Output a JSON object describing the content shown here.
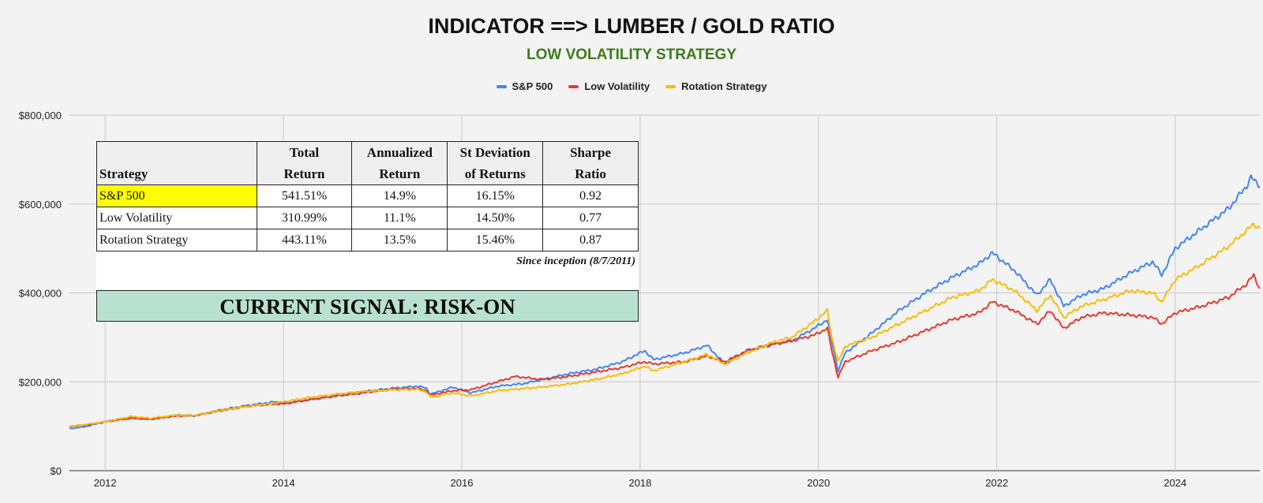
{
  "header": {
    "title": "INDICATOR ==> LUMBER / GOLD RATIO",
    "subtitle": "LOW VOLATILITY STRATEGY"
  },
  "legend": [
    {
      "label": "S&P 500",
      "color": "#4285f4"
    },
    {
      "label": "Low Volatility",
      "color": "#e8382e"
    },
    {
      "label": "Rotation Strategy",
      "color": "#fbbc04"
    }
  ],
  "stats_table": {
    "headers": [
      "Strategy",
      "Total Return",
      "Annualized Return",
      "St Deviation of Returns",
      "Sharpe Ratio"
    ],
    "header_lines": [
      [
        "Strategy"
      ],
      [
        "Total",
        "Return"
      ],
      [
        "Annualized",
        "Return"
      ],
      [
        "St Deviation",
        "of Returns"
      ],
      [
        "Sharpe",
        "Ratio"
      ]
    ],
    "rows": [
      [
        "S&P 500",
        "541.51%",
        "14.9%",
        "16.15%",
        "0.92"
      ],
      [
        "Low Volatility",
        "310.99%",
        "11.1%",
        "14.50%",
        "0.77"
      ],
      [
        "Rotation Strategy",
        "443.11%",
        "13.5%",
        "15.46%",
        "0.87"
      ]
    ],
    "footnote": "Since inception (8/7/2011)"
  },
  "signal": {
    "text": "CURRENT SIGNAL: RISK-ON",
    "color": "#b9e1cf"
  },
  "chart_data": {
    "type": "line",
    "title": "INDICATOR ==> LUMBER / GOLD RATIO",
    "subtitle": "LOW VOLATILITY STRATEGY",
    "xlabel": "",
    "ylabel": "",
    "xlim": [
      2011.6,
      2024.95
    ],
    "ylim": [
      0,
      800000
    ],
    "x_ticks": [
      2012,
      2014,
      2016,
      2018,
      2020,
      2022,
      2024
    ],
    "y_ticks": [
      0,
      200000,
      400000,
      600000,
      800000
    ],
    "y_tick_labels": [
      "$0",
      "$200,000",
      "$400,000",
      "$600,000",
      "$800,000"
    ],
    "grid": true,
    "legend_position": "top",
    "series": [
      {
        "name": "S&P 500",
        "color": "#4285f4",
        "points": [
          [
            2011.6,
            95000
          ],
          [
            2011.75,
            98000
          ],
          [
            2012.0,
            110000
          ],
          [
            2012.3,
            120000
          ],
          [
            2012.5,
            115000
          ],
          [
            2012.8,
            125000
          ],
          [
            2013.0,
            123000
          ],
          [
            2013.3,
            137000
          ],
          [
            2013.6,
            147000
          ],
          [
            2013.9,
            155000
          ],
          [
            2014.0,
            152000
          ],
          [
            2014.3,
            160000
          ],
          [
            2014.6,
            170000
          ],
          [
            2014.9,
            178000
          ],
          [
            2015.2,
            185000
          ],
          [
            2015.5,
            190000
          ],
          [
            2015.6,
            186000
          ],
          [
            2015.65,
            172000
          ],
          [
            2015.9,
            188000
          ],
          [
            2016.1,
            175000
          ],
          [
            2016.4,
            190000
          ],
          [
            2016.7,
            196000
          ],
          [
            2016.9,
            205000
          ],
          [
            2017.2,
            218000
          ],
          [
            2017.5,
            228000
          ],
          [
            2017.8,
            245000
          ],
          [
            2018.05,
            270000
          ],
          [
            2018.15,
            250000
          ],
          [
            2018.5,
            265000
          ],
          [
            2018.75,
            282000
          ],
          [
            2018.95,
            240000
          ],
          [
            2019.2,
            270000
          ],
          [
            2019.5,
            285000
          ],
          [
            2019.7,
            292000
          ],
          [
            2019.95,
            320000
          ],
          [
            2020.1,
            340000
          ],
          [
            2020.15,
            290000
          ],
          [
            2020.22,
            225000
          ],
          [
            2020.3,
            265000
          ],
          [
            2020.6,
            310000
          ],
          [
            2020.9,
            360000
          ],
          [
            2021.2,
            400000
          ],
          [
            2021.5,
            435000
          ],
          [
            2021.8,
            465000
          ],
          [
            2021.95,
            490000
          ],
          [
            2022.2,
            450000
          ],
          [
            2022.45,
            395000
          ],
          [
            2022.6,
            430000
          ],
          [
            2022.75,
            370000
          ],
          [
            2022.95,
            395000
          ],
          [
            2023.2,
            410000
          ],
          [
            2023.5,
            445000
          ],
          [
            2023.75,
            470000
          ],
          [
            2023.85,
            440000
          ],
          [
            2024.0,
            500000
          ],
          [
            2024.3,
            545000
          ],
          [
            2024.6,
            590000
          ],
          [
            2024.8,
            640000
          ],
          [
            2024.85,
            660000
          ],
          [
            2024.95,
            640000
          ]
        ]
      },
      {
        "name": "Low Volatility",
        "color": "#e8382e",
        "points": [
          [
            2011.6,
            100000
          ],
          [
            2011.75,
            102000
          ],
          [
            2012.0,
            110000
          ],
          [
            2012.3,
            118000
          ],
          [
            2012.5,
            116000
          ],
          [
            2012.8,
            123000
          ],
          [
            2013.0,
            124000
          ],
          [
            2013.3,
            135000
          ],
          [
            2013.6,
            145000
          ],
          [
            2013.9,
            150000
          ],
          [
            2014.0,
            150000
          ],
          [
            2014.3,
            160000
          ],
          [
            2014.6,
            168000
          ],
          [
            2014.9,
            175000
          ],
          [
            2015.2,
            183000
          ],
          [
            2015.5,
            185000
          ],
          [
            2015.6,
            180000
          ],
          [
            2015.65,
            170000
          ],
          [
            2015.9,
            180000
          ],
          [
            2016.1,
            182000
          ],
          [
            2016.4,
            200000
          ],
          [
            2016.6,
            212000
          ],
          [
            2016.9,
            205000
          ],
          [
            2017.2,
            212000
          ],
          [
            2017.5,
            222000
          ],
          [
            2017.8,
            232000
          ],
          [
            2018.05,
            245000
          ],
          [
            2018.15,
            240000
          ],
          [
            2018.5,
            245000
          ],
          [
            2018.75,
            258000
          ],
          [
            2018.95,
            245000
          ],
          [
            2019.2,
            270000
          ],
          [
            2019.5,
            285000
          ],
          [
            2019.7,
            292000
          ],
          [
            2019.95,
            305000
          ],
          [
            2020.1,
            320000
          ],
          [
            2020.15,
            270000
          ],
          [
            2020.22,
            210000
          ],
          [
            2020.3,
            245000
          ],
          [
            2020.6,
            270000
          ],
          [
            2020.9,
            290000
          ],
          [
            2021.2,
            315000
          ],
          [
            2021.5,
            340000
          ],
          [
            2021.8,
            355000
          ],
          [
            2021.95,
            380000
          ],
          [
            2022.2,
            360000
          ],
          [
            2022.45,
            330000
          ],
          [
            2022.6,
            360000
          ],
          [
            2022.75,
            320000
          ],
          [
            2022.95,
            345000
          ],
          [
            2023.2,
            355000
          ],
          [
            2023.5,
            350000
          ],
          [
            2023.75,
            345000
          ],
          [
            2023.85,
            330000
          ],
          [
            2024.0,
            355000
          ],
          [
            2024.3,
            370000
          ],
          [
            2024.6,
            390000
          ],
          [
            2024.8,
            420000
          ],
          [
            2024.88,
            440000
          ],
          [
            2024.95,
            410000
          ]
        ]
      },
      {
        "name": "Rotation Strategy",
        "color": "#fbbc04",
        "points": [
          [
            2011.6,
            100000
          ],
          [
            2011.75,
            103000
          ],
          [
            2012.0,
            110000
          ],
          [
            2012.3,
            122000
          ],
          [
            2012.5,
            118000
          ],
          [
            2012.8,
            125000
          ],
          [
            2013.0,
            124000
          ],
          [
            2013.3,
            136000
          ],
          [
            2013.6,
            145000
          ],
          [
            2013.9,
            152000
          ],
          [
            2014.0,
            155000
          ],
          [
            2014.3,
            165000
          ],
          [
            2014.6,
            172000
          ],
          [
            2014.9,
            178000
          ],
          [
            2015.2,
            182000
          ],
          [
            2015.5,
            183000
          ],
          [
            2015.6,
            178000
          ],
          [
            2015.65,
            165000
          ],
          [
            2015.9,
            175000
          ],
          [
            2016.1,
            168000
          ],
          [
            2016.4,
            180000
          ],
          [
            2016.7,
            185000
          ],
          [
            2016.9,
            188000
          ],
          [
            2017.2,
            195000
          ],
          [
            2017.5,
            205000
          ],
          [
            2017.8,
            218000
          ],
          [
            2018.05,
            235000
          ],
          [
            2018.15,
            225000
          ],
          [
            2018.5,
            245000
          ],
          [
            2018.75,
            262000
          ],
          [
            2018.95,
            240000
          ],
          [
            2019.2,
            265000
          ],
          [
            2019.5,
            290000
          ],
          [
            2019.7,
            300000
          ],
          [
            2019.95,
            335000
          ],
          [
            2020.1,
            360000
          ],
          [
            2020.15,
            300000
          ],
          [
            2020.22,
            245000
          ],
          [
            2020.3,
            280000
          ],
          [
            2020.6,
            300000
          ],
          [
            2020.9,
            330000
          ],
          [
            2021.2,
            360000
          ],
          [
            2021.5,
            390000
          ],
          [
            2021.8,
            405000
          ],
          [
            2021.95,
            430000
          ],
          [
            2022.2,
            405000
          ],
          [
            2022.45,
            360000
          ],
          [
            2022.6,
            395000
          ],
          [
            2022.75,
            345000
          ],
          [
            2022.95,
            370000
          ],
          [
            2023.2,
            385000
          ],
          [
            2023.5,
            405000
          ],
          [
            2023.75,
            400000
          ],
          [
            2023.85,
            380000
          ],
          [
            2024.0,
            430000
          ],
          [
            2024.3,
            465000
          ],
          [
            2024.6,
            505000
          ],
          [
            2024.8,
            540000
          ],
          [
            2024.88,
            555000
          ],
          [
            2024.95,
            545000
          ]
        ]
      }
    ]
  }
}
